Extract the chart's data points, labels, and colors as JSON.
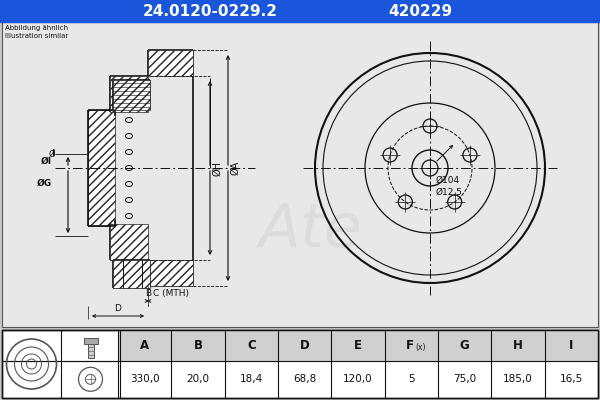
{
  "title_part": "24.0120-0229.2",
  "title_code": "420229",
  "header_bg": "#1a56db",
  "header_text_color": "#ffffff",
  "bg_color": "#c8c8c8",
  "diagram_bg": "#f0f0f0",
  "note_line1": "Abbildung ähnlich",
  "note_line2": "Illustration similar",
  "table_headers": [
    "A",
    "B",
    "C",
    "D",
    "E",
    "F(x)",
    "G",
    "H",
    "I"
  ],
  "table_values": [
    "330,0",
    "20,0",
    "18,4",
    "68,8",
    "120,0",
    "5",
    "75,0",
    "185,0",
    "16,5"
  ],
  "front_labels": [
    "Ø104",
    "Ø12,5"
  ],
  "line_color": "#111111",
  "hatch_color": "#222222",
  "watermark_color": "#bbbbbb",
  "diag_bg": "#e8e8e8"
}
